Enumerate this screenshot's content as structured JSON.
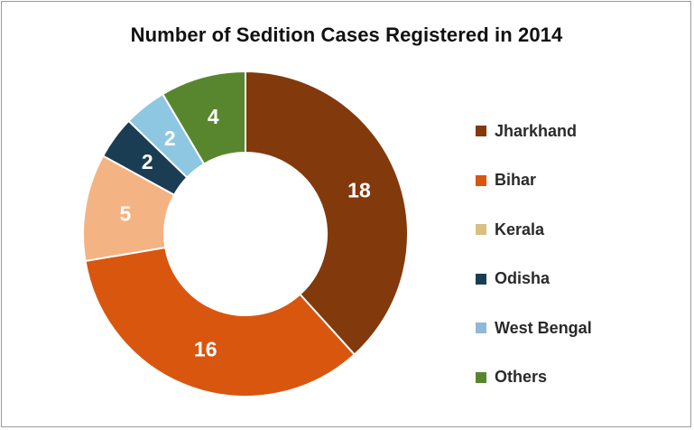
{
  "chart_data": {
    "type": "pie",
    "title": "Number of Sedition Cases Registered in 2014",
    "categories": [
      "Jharkhand",
      "Bihar",
      "Kerala",
      "Odisha",
      "West Bengal",
      "Others"
    ],
    "values": [
      18,
      16,
      5,
      2,
      2,
      4
    ],
    "data_labels": [
      "18",
      "16",
      "5",
      "2",
      "2",
      "4"
    ],
    "donut": true,
    "legend_position": "right"
  },
  "colors": {
    "slices": [
      "#82390c",
      "#d9560f",
      "#f4b382",
      "#1b3d54",
      "#8ec7e1",
      "#58862e"
    ],
    "legend": [
      "#82390c",
      "#d9560f",
      "#d9c080",
      "#1b3d54",
      "#8fb9d8",
      "#58862e"
    ]
  }
}
